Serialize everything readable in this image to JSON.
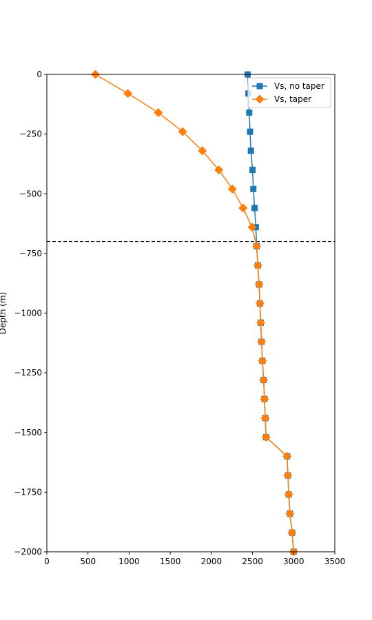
{
  "chart_data": {
    "type": "line",
    "title": "",
    "xlabel": "",
    "ylabel": "Depth (m)",
    "xlim": [
      0,
      3500
    ],
    "ylim": [
      -2000,
      0
    ],
    "xticks": [
      0,
      500,
      1000,
      1500,
      2000,
      2500,
      3000,
      3500
    ],
    "yticks": [
      0,
      -250,
      -500,
      -750,
      -1000,
      -1250,
      -1500,
      -1750,
      -2000
    ],
    "xtick_labels": [
      "0",
      "500",
      "1000",
      "1500",
      "2000",
      "2500",
      "3000",
      "3500"
    ],
    "ytick_labels": [
      "0",
      "−250",
      "−500",
      "−750",
      "−1000",
      "−1250",
      "−1500",
      "−1750",
      "−2000"
    ],
    "grid": false,
    "legend_position": "top-right",
    "reference_line": {
      "orientation": "horizontal",
      "y": -700,
      "style": "dashed",
      "color": "#000000"
    },
    "series": [
      {
        "name": "Vs, no taper",
        "color": "#1f77b4",
        "marker": "square",
        "x": [
          2440,
          2450,
          2460,
          2470,
          2480,
          2500,
          2510,
          2525,
          2540,
          2550,
          2565,
          2580,
          2590,
          2600,
          2610,
          2620,
          2635,
          2645,
          2655,
          2665,
          2920,
          2930,
          2940,
          2955,
          2980,
          3000
        ],
        "y": [
          0,
          -80,
          -160,
          -240,
          -320,
          -400,
          -480,
          -560,
          -640,
          -720,
          -800,
          -880,
          -960,
          -1040,
          -1120,
          -1200,
          -1280,
          -1360,
          -1440,
          -1520,
          -1600,
          -1680,
          -1760,
          -1840,
          -1920,
          -2000
        ]
      },
      {
        "name": "Vs, taper",
        "color": "#ff7f0e",
        "marker": "diamond",
        "x": [
          590,
          985,
          1355,
          1650,
          1890,
          2090,
          2255,
          2385,
          2495,
          2550,
          2565,
          2580,
          2590,
          2600,
          2610,
          2620,
          2635,
          2645,
          2655,
          2665,
          2920,
          2930,
          2940,
          2955,
          2980,
          3000
        ],
        "y": [
          0,
          -80,
          -160,
          -240,
          -320,
          -400,
          -480,
          -560,
          -640,
          -720,
          -800,
          -880,
          -960,
          -1040,
          -1120,
          -1200,
          -1280,
          -1360,
          -1440,
          -1520,
          -1600,
          -1680,
          -1760,
          -1840,
          -1920,
          -2000
        ]
      }
    ]
  }
}
